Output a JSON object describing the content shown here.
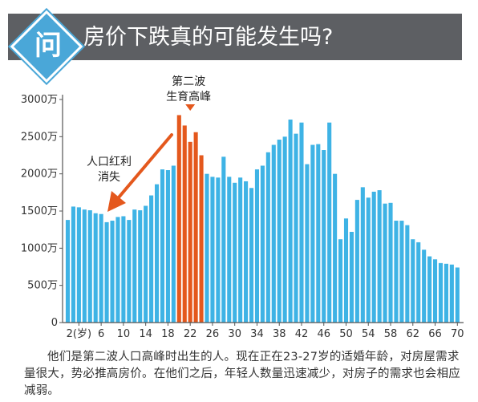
{
  "banner": {
    "icon_char": "问",
    "title": "房价下跌真的可能发生吗?"
  },
  "chart_data": {
    "type": "bar",
    "ylim": [
      0,
      3000
    ],
    "yticks": [
      {
        "value": 0,
        "label": "0"
      },
      {
        "value": 500,
        "label": "500万"
      },
      {
        "value": 1000,
        "label": "1000万"
      },
      {
        "value": 1500,
        "label": "1500万"
      },
      {
        "value": 2000,
        "label": "2000万"
      },
      {
        "value": 2500,
        "label": "2500万"
      },
      {
        "value": 3000,
        "label": "3000万"
      }
    ],
    "xticks": [
      {
        "index": 2,
        "label": "2(岁)"
      },
      {
        "index": 6,
        "label": "6"
      },
      {
        "index": 10,
        "label": "10"
      },
      {
        "index": 14,
        "label": "14"
      },
      {
        "index": 18,
        "label": "18"
      },
      {
        "index": 22,
        "label": "22"
      },
      {
        "index": 26,
        "label": "26"
      },
      {
        "index": 30,
        "label": "30"
      },
      {
        "index": 34,
        "label": "34"
      },
      {
        "index": 38,
        "label": "38"
      },
      {
        "index": 42,
        "label": "42"
      },
      {
        "index": 46,
        "label": "46"
      },
      {
        "index": 50,
        "label": "50"
      },
      {
        "index": 54,
        "label": "54"
      },
      {
        "index": 58,
        "label": "58"
      },
      {
        "index": 62,
        "label": "62"
      },
      {
        "index": 66,
        "label": "66"
      },
      {
        "index": 70,
        "label": "70"
      }
    ],
    "colors": {
      "default": "#3eb3e5",
      "highlight": "#e4581d",
      "axis": "#555555",
      "arrow": "#e4581d"
    },
    "highlight_ages": [
      20,
      21,
      22,
      23,
      24
    ],
    "values": [
      1380,
      1560,
      1550,
      1520,
      1510,
      1470,
      1460,
      1350,
      1370,
      1420,
      1430,
      1380,
      1520,
      1510,
      1570,
      1710,
      1860,
      2060,
      2050,
      2110,
      2790,
      2650,
      2430,
      2560,
      2250,
      2000,
      1960,
      1950,
      2230,
      1960,
      1880,
      1950,
      1900,
      1810,
      2060,
      2110,
      2290,
      2390,
      2460,
      2500,
      2730,
      2540,
      2690,
      2130,
      2390,
      2400,
      2320,
      2690,
      2000,
      1120,
      1400,
      1220,
      1650,
      1820,
      1680,
      1760,
      1780,
      1600,
      1610,
      1370,
      1370,
      1310,
      1120,
      1080,
      980,
      890,
      850,
      800,
      790,
      780,
      740
    ],
    "annotations": {
      "second_wave": [
        "第二波",
        "生育高峰"
      ],
      "demographic_dividend": [
        "人口红利",
        "消失"
      ]
    }
  },
  "caption": "他们是第二波人口高峰时出生的人。现在正在23-27岁的适婚年龄，对房屋需求量很大，势必推高房价。在他们之后，年轻人数量迅速减少，对房子的需求也会相应减弱。"
}
